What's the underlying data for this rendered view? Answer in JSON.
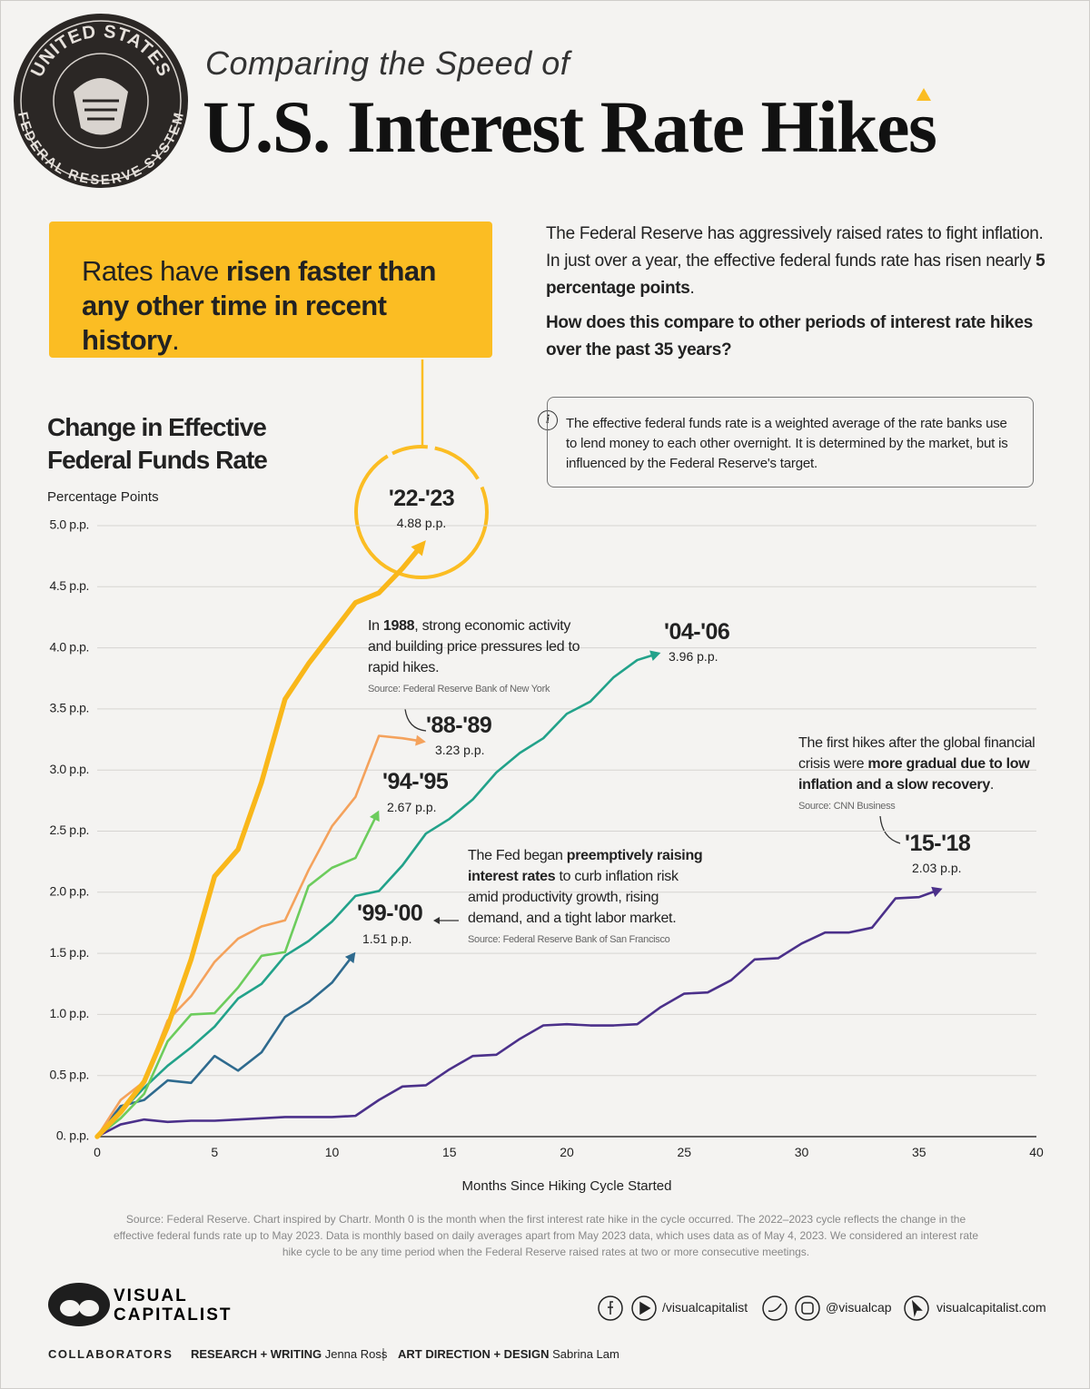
{
  "header": {
    "seal": [
      "UNITED STATES",
      "FEDERAL RESERVE SYSTEM"
    ],
    "subtitle": "Comparing the Speed of",
    "title": "U.S. Interest Rate Hikes"
  },
  "callout": [
    "Rates have ",
    "risen faster than any other time in recent history",
    "."
  ],
  "intro": {
    "p1": [
      "The Federal Reserve has aggressively raised rates to fight inflation. In just over a year, the effective federal funds rate has risen nearly ",
      "5 percentage points",
      "."
    ],
    "p2": "How does this compare to other periods of interest rate hikes over the past 35 years?"
  },
  "info": {
    "icon": "i",
    "text": "The effective federal funds rate is a weighted average of the rate banks use to lend money to each other overnight. It is determined by the market, but is influenced by the Federal Reserve's target."
  },
  "chart_data": {
    "type": "line",
    "title": "Change in Effective Federal Funds Rate",
    "y_label": "Percentage Points",
    "x_label": "Months Since Hiking Cycle Started",
    "x": [
      0,
      1,
      2,
      3,
      4,
      5,
      6,
      7,
      8,
      9,
      10,
      11,
      12,
      13,
      14,
      15,
      16,
      17,
      18,
      19,
      20,
      21,
      22,
      23,
      24,
      25,
      26,
      27,
      28,
      29,
      30,
      31,
      32,
      33,
      34,
      35,
      36
    ],
    "xlim": [
      0,
      40
    ],
    "xticks": [
      0,
      5,
      10,
      15,
      20,
      25,
      30,
      35,
      40
    ],
    "ylim": [
      0,
      5
    ],
    "yticks": [
      {
        "value": 0,
        "label": "0. p.p."
      },
      {
        "value": 0.5,
        "label": "0.5 p.p."
      },
      {
        "value": 1,
        "label": "1.0 p.p."
      },
      {
        "value": 1.5,
        "label": "1.5 p.p."
      },
      {
        "value": 2,
        "label": "2.0 p.p."
      },
      {
        "value": 2.5,
        "label": "2.5 p.p."
      },
      {
        "value": 3,
        "label": "3.0 p.p."
      },
      {
        "value": 3.5,
        "label": "3.5 p.p."
      },
      {
        "value": 4,
        "label": "4.0 p.p."
      },
      {
        "value": 4.5,
        "label": "4.5 p.p."
      },
      {
        "value": 5,
        "label": "5.0 p.p."
      }
    ],
    "grid": true,
    "series": [
      {
        "name": "'22-'23",
        "color": "#f9b71a",
        "values": [
          0,
          0.2,
          0.45,
          0.9,
          1.45,
          2.13,
          2.35,
          2.9,
          3.58,
          3.87,
          4.12,
          4.37,
          4.45,
          4.65,
          4.88,
          null,
          null,
          null,
          null,
          null,
          null,
          null,
          null,
          null,
          null,
          null,
          null,
          null,
          null,
          null,
          null,
          null,
          null,
          null,
          null,
          null,
          null
        ],
        "value_labels": [
          null,
          null,
          null,
          null,
          null,
          null,
          null,
          null,
          null,
          null,
          null,
          null,
          null,
          null,
          "4.88 p.p.",
          null,
          null,
          null,
          null,
          null,
          null,
          null,
          null,
          null,
          null,
          null,
          null,
          null,
          null,
          null,
          null,
          null,
          null,
          null,
          null,
          null,
          null
        ]
      },
      {
        "name": "'88-'89",
        "color": "#f4a25c",
        "values": [
          0,
          0.3,
          0.45,
          0.95,
          1.15,
          1.43,
          1.62,
          1.72,
          1.77,
          2.18,
          2.54,
          2.78,
          3.28,
          3.26,
          3.23,
          null,
          null,
          null,
          null,
          null,
          null,
          null,
          null,
          null,
          null,
          null,
          null,
          null,
          null,
          null,
          null,
          null,
          null,
          null,
          null,
          null,
          null
        ],
        "value_labels": [
          null,
          null,
          null,
          null,
          null,
          null,
          null,
          null,
          null,
          null,
          null,
          null,
          null,
          null,
          "3.23 p.p.",
          null,
          null,
          null,
          null,
          null,
          null,
          null,
          null,
          null,
          null,
          null,
          null,
          null,
          null,
          null,
          null,
          null,
          null,
          null,
          null,
          null,
          null
        ]
      },
      {
        "name": "'94-'95",
        "color": "#6ccc5c",
        "values": [
          0,
          0.15,
          0.35,
          0.78,
          1,
          1.01,
          1.22,
          1.48,
          1.51,
          2.05,
          2.2,
          2.28,
          2.67,
          null,
          null,
          null,
          null,
          null,
          null,
          null,
          null,
          null,
          null,
          null,
          null,
          null,
          null,
          null,
          null,
          null,
          null,
          null,
          null,
          null,
          null,
          null,
          null
        ],
        "value_labels": [
          null,
          null,
          null,
          null,
          null,
          null,
          null,
          null,
          null,
          null,
          null,
          null,
          "2.67 p.p.",
          null,
          null,
          null,
          null,
          null,
          null,
          null,
          null,
          null,
          null,
          null,
          null,
          null,
          null,
          null,
          null,
          null,
          null,
          null,
          null,
          null,
          null,
          null,
          null
        ]
      },
      {
        "name": "'04-'06",
        "color": "#22a28a",
        "values": [
          0,
          0.2,
          0.4,
          0.58,
          0.73,
          0.9,
          1.13,
          1.25,
          1.48,
          1.6,
          1.76,
          1.97,
          2.01,
          2.22,
          2.48,
          2.6,
          2.76,
          2.98,
          3.14,
          3.26,
          3.46,
          3.56,
          3.76,
          3.9,
          3.96,
          null,
          null,
          null,
          null,
          null,
          null,
          null,
          null,
          null,
          null,
          null,
          null
        ],
        "value_labels": [
          null,
          null,
          null,
          null,
          null,
          null,
          null,
          null,
          null,
          null,
          null,
          null,
          null,
          null,
          null,
          null,
          null,
          null,
          null,
          null,
          null,
          null,
          null,
          null,
          "3.96 p.p.",
          null,
          null,
          null,
          null,
          null,
          null,
          null,
          null,
          null,
          null,
          null,
          null
        ]
      },
      {
        "name": "'99-'00",
        "color": "#2e6a8e",
        "values": [
          0,
          0.25,
          0.3,
          0.46,
          0.44,
          0.66,
          0.54,
          0.69,
          0.98,
          1.1,
          1.26,
          1.51,
          null,
          null,
          null,
          null,
          null,
          null,
          null,
          null,
          null,
          null,
          null,
          null,
          null,
          null,
          null,
          null,
          null,
          null,
          null,
          null,
          null,
          null,
          null,
          null,
          null
        ],
        "value_labels": [
          null,
          null,
          null,
          null,
          null,
          null,
          null,
          null,
          null,
          null,
          null,
          "1.51 p.p.",
          null,
          null,
          null,
          null,
          null,
          null,
          null,
          null,
          null,
          null,
          null,
          null,
          null,
          null,
          null,
          null,
          null,
          null,
          null,
          null,
          null,
          null,
          null,
          null,
          null
        ]
      },
      {
        "name": "'15-'18",
        "color": "#4b308a",
        "values": [
          0,
          0.1,
          0.14,
          0.12,
          0.13,
          0.13,
          0.14,
          0.15,
          0.16,
          0.16,
          0.16,
          0.17,
          0.3,
          0.41,
          0.42,
          0.55,
          0.66,
          0.67,
          0.8,
          0.91,
          0.92,
          0.91,
          0.91,
          0.92,
          1.06,
          1.17,
          1.18,
          1.28,
          1.45,
          1.46,
          1.58,
          1.67,
          1.67,
          1.71,
          1.95,
          1.96,
          2.03
        ],
        "value_labels": [
          null,
          null,
          null,
          null,
          null,
          null,
          null,
          null,
          null,
          null,
          null,
          null,
          null,
          null,
          null,
          null,
          null,
          null,
          null,
          null,
          null,
          null,
          null,
          null,
          null,
          null,
          null,
          null,
          null,
          null,
          null,
          null,
          null,
          null,
          null,
          null,
          "2.03 p.p."
        ]
      }
    ],
    "annotations": [
      {
        "parts": [
          "In ",
          "1988",
          ", strong economic activity and building price pressures led to rapid hikes."
        ],
        "source": "Source: Federal Reserve Bank of New York"
      },
      {
        "parts": [
          "The Fed began ",
          "preemptively raising interest rates",
          " to curb inflation risk amid productivity growth, rising demand, and a tight labor market."
        ],
        "source": "Source: Federal Reserve Bank of San Francisco"
      },
      {
        "parts": [
          "The first hikes after the global financial crisis were ",
          "more gradual due to low inflation and a slow recovery",
          "."
        ],
        "source": "Source: CNN Business"
      }
    ],
    "note": "Source: Federal Reserve. Chart inspired by Chartr. Month 0 is the month when the first interest rate hike in the cycle occurred. The 2022–2023 cycle reflects the change in the effective federal funds rate up to May 2023. Data is monthly based on daily averages apart from May 2023 data, which uses data as of May 4, 2023. We considered an interest rate hike cycle to be any time period when the Federal Reserve raised rates at two or more consecutive meetings."
  },
  "footer": {
    "logo": [
      "VISUAL",
      "CAPITALIST"
    ],
    "social": [
      "/visualcapitalist",
      "@visualcap",
      "visualcapitalist.com"
    ],
    "collaborators": "COLLABORATORS",
    "credits": [
      {
        "role": "RESEARCH + WRITING",
        "name": "Jenna Ross"
      },
      {
        "role": "ART DIRECTION + DESIGN",
        "name": "Sabrina Lam"
      }
    ]
  }
}
